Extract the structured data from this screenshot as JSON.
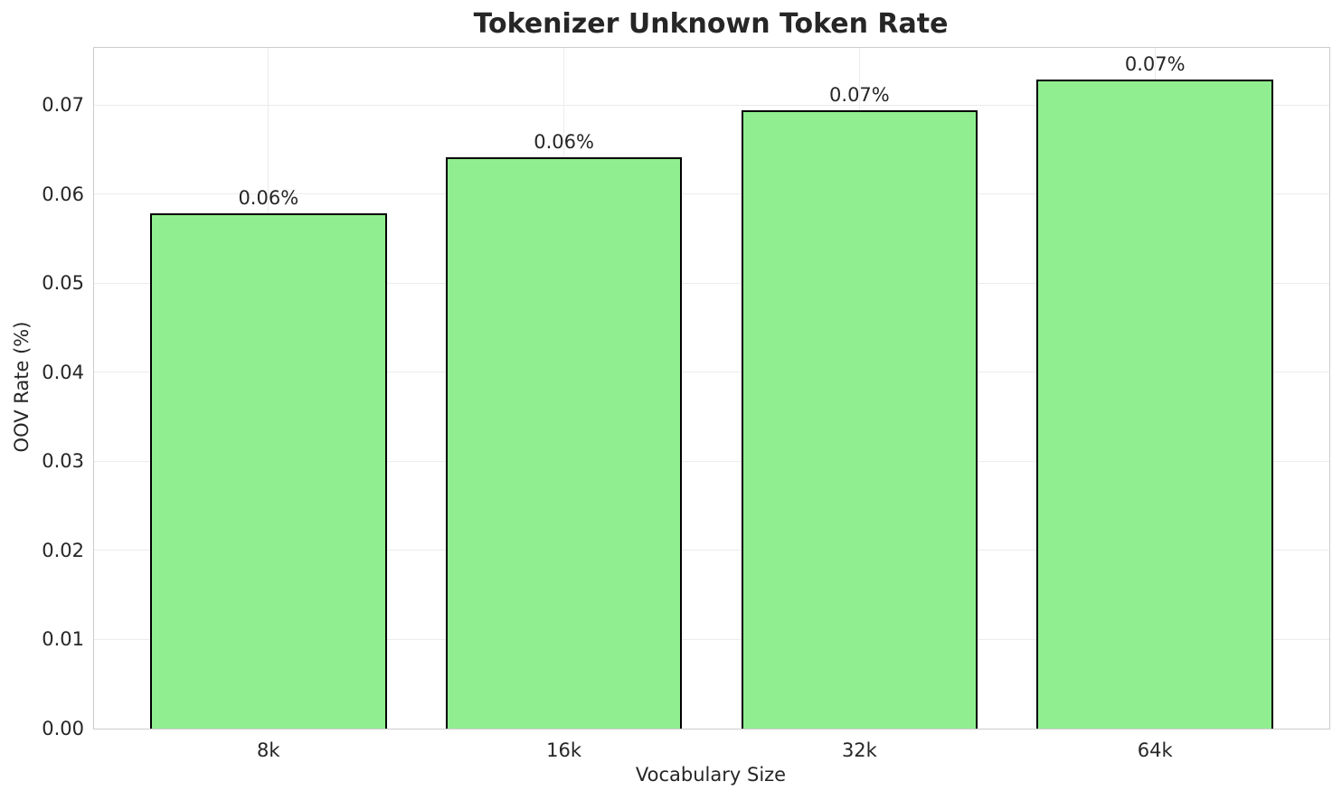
{
  "chart_data": {
    "type": "bar",
    "title": "Tokenizer Unknown Token Rate",
    "xlabel": "Vocabulary Size",
    "ylabel": "OOV Rate (%)",
    "categories": [
      "8k",
      "16k",
      "32k",
      "64k"
    ],
    "values": [
      0.0578,
      0.0641,
      0.0694,
      0.0728
    ],
    "bar_labels": [
      "0.06%",
      "0.06%",
      "0.07%",
      "0.07%"
    ],
    "yticks": [
      "0.00",
      "0.01",
      "0.02",
      "0.03",
      "0.04",
      "0.05",
      "0.06",
      "0.07"
    ],
    "ylim": [
      0,
      0.0764
    ],
    "xlim": [
      -0.59,
      3.59
    ],
    "bar_width_units": 0.8,
    "grid": true,
    "legend": "none",
    "bar_color": "#90EE90",
    "bar_edge_color": "#000000",
    "grid_color": "#ececec",
    "spine_color": "#cccccc",
    "text_color": "#262626"
  }
}
